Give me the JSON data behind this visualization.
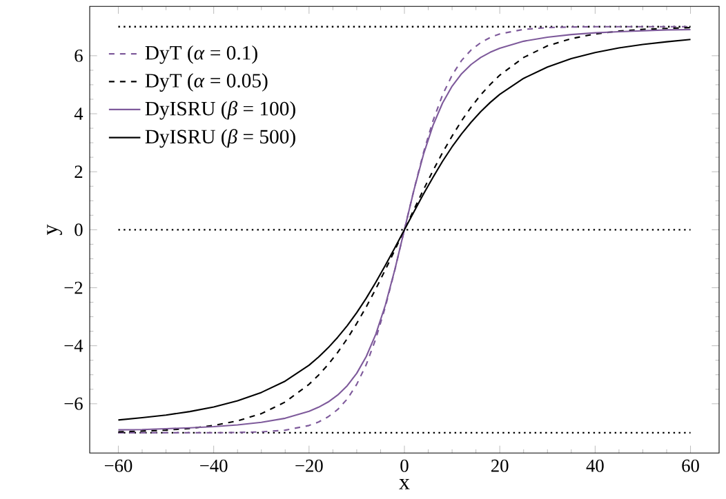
{
  "chart_data": {
    "type": "line",
    "xlabel": "x",
    "ylabel": "y",
    "x": [
      -60,
      -55,
      -50,
      -45,
      -40,
      -35,
      -30,
      -25,
      -20,
      -18,
      -16,
      -14,
      -12,
      -10,
      -8,
      -6,
      -4,
      -2,
      0,
      2,
      4,
      6,
      8,
      10,
      12,
      14,
      16,
      18,
      20,
      25,
      30,
      35,
      40,
      45,
      50,
      55,
      60
    ],
    "series": [
      {
        "name": "DyT (*α* = 0.1)",
        "color": "#7e5a9b",
        "line_style": "dashed",
        "values": [
          -7.0,
          -7.0,
          -7.0,
          -7.0,
          -7.0,
          -6.99,
          -6.97,
          -6.91,
          -6.75,
          -6.63,
          -6.45,
          -6.2,
          -5.84,
          -5.33,
          -4.65,
          -3.76,
          -2.66,
          -1.38,
          0,
          1.38,
          2.66,
          3.76,
          4.65,
          5.33,
          5.84,
          6.2,
          6.45,
          6.63,
          6.75,
          6.91,
          6.97,
          6.99,
          7.0,
          7.0,
          7.0,
          7.0,
          7.0
        ]
      },
      {
        "name": "DyT (*α* = 0.05)",
        "color": "#000000",
        "line_style": "dashed",
        "values": [
          -6.97,
          -6.94,
          -6.91,
          -6.85,
          -6.75,
          -6.59,
          -6.34,
          -5.94,
          -5.33,
          -5.01,
          -4.65,
          -4.23,
          -3.76,
          -3.23,
          -2.66,
          -2.04,
          -1.38,
          -0.7,
          0,
          0.7,
          1.38,
          2.04,
          2.66,
          3.23,
          3.76,
          4.23,
          4.65,
          5.01,
          5.33,
          5.94,
          6.34,
          6.59,
          6.75,
          6.85,
          6.91,
          6.94,
          6.97
        ]
      },
      {
        "name": "DyISRU (*β* = 100)",
        "color": "#7e5a9b",
        "line_style": "solid",
        "values": [
          -6.9,
          -6.89,
          -6.86,
          -6.83,
          -6.79,
          -6.73,
          -6.64,
          -6.5,
          -6.26,
          -6.12,
          -5.94,
          -5.7,
          -5.38,
          -4.95,
          -4.37,
          -3.6,
          -2.6,
          -1.37,
          0,
          1.37,
          2.6,
          3.6,
          4.37,
          4.95,
          5.38,
          5.7,
          5.94,
          6.12,
          6.26,
          6.5,
          6.64,
          6.73,
          6.79,
          6.83,
          6.86,
          6.89,
          6.9
        ]
      },
      {
        "name": "DyISRU (*β* = 500)",
        "color": "#000000",
        "line_style": "solid",
        "values": [
          -6.56,
          -6.48,
          -6.39,
          -6.27,
          -6.11,
          -5.9,
          -5.61,
          -5.22,
          -4.67,
          -4.39,
          -4.07,
          -3.71,
          -3.31,
          -2.86,
          -2.36,
          -1.81,
          -1.23,
          -0.62,
          0,
          0.62,
          1.23,
          1.81,
          2.36,
          2.86,
          3.31,
          3.71,
          4.07,
          4.39,
          4.67,
          5.22,
          5.61,
          5.9,
          6.11,
          6.27,
          6.39,
          6.48,
          6.56
        ]
      }
    ],
    "ref_lines": [
      {
        "axis": "y",
        "value": 7,
        "color": "#000000",
        "line_style": "dotted"
      },
      {
        "axis": "y",
        "value": 0,
        "color": "#000000",
        "line_style": "dotted"
      },
      {
        "axis": "y",
        "value": -7,
        "color": "#000000",
        "line_style": "dotted"
      }
    ],
    "xlim": [
      -66,
      66
    ],
    "ylim": [
      -7.7,
      7.7
    ],
    "xticks": [
      {
        "value": -60,
        "label": "−60"
      },
      {
        "value": -40,
        "label": "−40"
      },
      {
        "value": -20,
        "label": "−20"
      },
      0,
      20,
      40,
      60
    ],
    "yticks": [
      {
        "value": -6,
        "label": "−6"
      },
      {
        "value": -4,
        "label": "−4"
      },
      {
        "value": -2,
        "label": "−2"
      },
      0,
      2,
      4,
      6
    ],
    "legend": "top left",
    "grid": false,
    "marker": "none"
  }
}
